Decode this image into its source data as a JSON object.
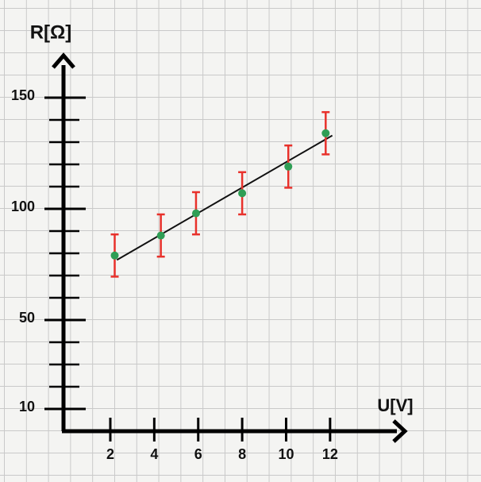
{
  "chart_data": {
    "type": "errorbar-scatter",
    "x_label": "U[V]",
    "y_label": "R[Ω]",
    "xlim": [
      0,
      15.4
    ],
    "ylim": [
      0,
      170
    ],
    "xticks": [
      2,
      4,
      6,
      8,
      10,
      12
    ],
    "yticks": [
      10,
      50,
      100,
      150
    ],
    "y_minor_ticks": [
      20,
      30,
      40,
      60,
      70,
      80,
      90,
      110,
      120,
      130,
      140
    ],
    "x": [
      2.2,
      4.3,
      5.9,
      8.0,
      10.1,
      11.8
    ],
    "values": [
      79,
      88,
      98,
      107,
      119,
      134
    ],
    "errors": [
      9.5,
      9.5,
      9.5,
      9.5,
      9.5,
      9.5
    ],
    "point_color": "#2f9e55",
    "error_color": "#e8312b",
    "fit_line": {
      "x": [
        2.3,
        12.1
      ],
      "y": [
        77,
        133
      ],
      "color": "#111111"
    }
  }
}
